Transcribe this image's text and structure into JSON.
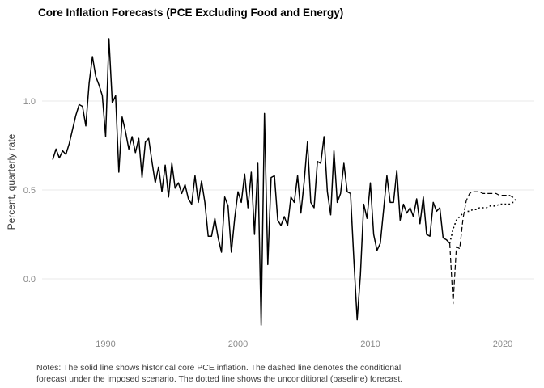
{
  "notes_lines": [
    "Notes: The solid line shows historical core PCE inflation. The dashed line denotes the conditional",
    "forecast under the imposed scenario. The dotted line shows the unconditional (baseline) forecast."
  ],
  "chart_data": {
    "type": "line",
    "title": "Core Inflation Forecasts (PCE Excluding Food and Energy)",
    "xlabel": "",
    "ylabel": "Percent, quarterly rate",
    "x_tick_labels": [
      "1990",
      "2000",
      "2010",
      "2020"
    ],
    "y_tick_labels": [
      "0.0",
      "0.5",
      "1.0"
    ],
    "xlim": [
      1985.3,
      2022.4
    ],
    "ylim": [
      -0.3,
      1.41
    ],
    "grid": "horizontal-major-only",
    "legend": "none",
    "colors": {
      "line": "#000000",
      "grid": "#e8e8e8",
      "tick_label": "#8a8a8a",
      "title": "#000000",
      "notes": "#3d3d3d"
    },
    "series": [
      {
        "id": "historical",
        "name": "Historical core PCE inflation",
        "style": "solid",
        "x_start": 1986.0,
        "x_step": 0.25,
        "values": [
          0.67,
          0.73,
          0.68,
          0.72,
          0.7,
          0.76,
          0.84,
          0.92,
          0.98,
          0.97,
          0.86,
          1.1,
          1.25,
          1.14,
          1.09,
          1.03,
          0.8,
          1.35,
          0.99,
          1.03,
          0.6,
          0.91,
          0.83,
          0.73,
          0.8,
          0.71,
          0.79,
          0.57,
          0.77,
          0.79,
          0.66,
          0.54,
          0.63,
          0.49,
          0.64,
          0.46,
          0.65,
          0.51,
          0.54,
          0.48,
          0.53,
          0.45,
          0.42,
          0.58,
          0.43,
          0.55,
          0.43,
          0.24,
          0.24,
          0.34,
          0.23,
          0.15,
          0.46,
          0.41,
          0.15,
          0.34,
          0.49,
          0.43,
          0.59,
          0.4,
          0.6,
          0.25,
          0.65,
          -0.26,
          0.93,
          0.08,
          0.57,
          0.58,
          0.33,
          0.3,
          0.35,
          0.3,
          0.46,
          0.43,
          0.58,
          0.37,
          0.55,
          0.77,
          0.43,
          0.4,
          0.66,
          0.65,
          0.8,
          0.49,
          0.36,
          0.72,
          0.43,
          0.48,
          0.65,
          0.49,
          0.48,
          0.11,
          -0.23,
          0.02,
          0.42,
          0.34,
          0.54,
          0.25,
          0.16,
          0.2,
          0.39,
          0.58,
          0.43,
          0.43,
          0.61,
          0.33,
          0.42,
          0.37,
          0.4,
          0.35,
          0.45,
          0.31,
          0.46,
          0.25,
          0.24,
          0.43,
          0.38,
          0.4,
          0.23,
          0.22,
          0.2
        ]
      },
      {
        "id": "conditional-forecast",
        "name": "Conditional forecast under the imposed scenario",
        "style": "dashed",
        "x_start": 2016.0,
        "x_step": 0.25,
        "values": [
          0.2,
          -0.14,
          0.18,
          0.17,
          0.34,
          0.44,
          0.48,
          0.49,
          0.49,
          0.49,
          0.48,
          0.48,
          0.48,
          0.48,
          0.48,
          0.47,
          0.47,
          0.47,
          0.47,
          0.46,
          0.44
        ]
      },
      {
        "id": "baseline-forecast",
        "name": "Unconditional (baseline) forecast",
        "style": "dotted",
        "x_start": 2016.0,
        "x_step": 0.25,
        "values": [
          0.2,
          0.28,
          0.33,
          0.35,
          0.37,
          0.38,
          0.38,
          0.39,
          0.39,
          0.4,
          0.4,
          0.4,
          0.41,
          0.41,
          0.41,
          0.42,
          0.42,
          0.42,
          0.42,
          0.43,
          0.43
        ]
      }
    ]
  }
}
